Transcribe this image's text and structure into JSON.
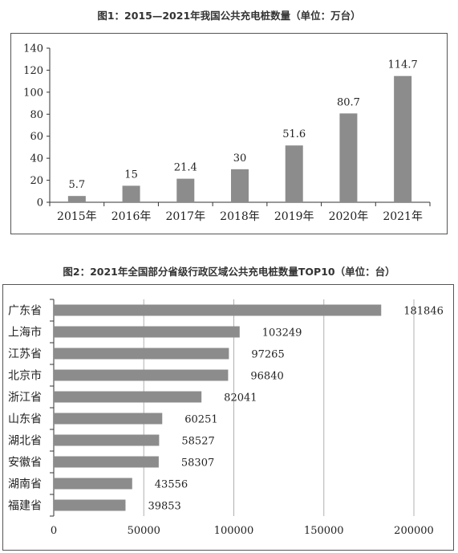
{
  "chart_data": [
    {
      "type": "bar",
      "title": "图1：2015—2021年我国公共充电桩数量（单位：万台）",
      "categories": [
        "2015年",
        "2016年",
        "2017年",
        "2018年",
        "2019年",
        "2020年",
        "2021年"
      ],
      "values": [
        5.7,
        15,
        21.4,
        30,
        51.6,
        80.7,
        114.7
      ],
      "value_labels": [
        "5.7",
        "15",
        "21.4",
        "30",
        "51.6",
        "80.7",
        "114.7"
      ],
      "ylim": [
        0,
        140
      ],
      "yticks": [
        "0",
        "20",
        "40",
        "60",
        "80",
        "100",
        "120",
        "140"
      ],
      "grid": false,
      "bar_color": "#8c8c8c"
    },
    {
      "type": "bar",
      "orientation": "horizontal",
      "title": "图2：2021年全国部分省级行政区域公共充电桩数量TOP10（单位：台）",
      "categories": [
        "广东省",
        "上海市",
        "江苏省",
        "北京市",
        "浙江省",
        "山东省",
        "湖北省",
        "安徽省",
        "湖南省",
        "福建省"
      ],
      "values": [
        181846,
        103249,
        97265,
        96840,
        82041,
        60251,
        58527,
        58307,
        43556,
        39853
      ],
      "value_labels": [
        "181846",
        "103249",
        "97265",
        "96840",
        "82041",
        "60251",
        "58527",
        "58307",
        "43556",
        "39853"
      ],
      "xlim": [
        0,
        200000
      ],
      "xticks": [
        "0",
        "50000",
        "100000",
        "150000",
        "200000"
      ],
      "grid": true,
      "bar_color": "#8c8c8c",
      "grid_color": "#b0b0b0"
    }
  ]
}
